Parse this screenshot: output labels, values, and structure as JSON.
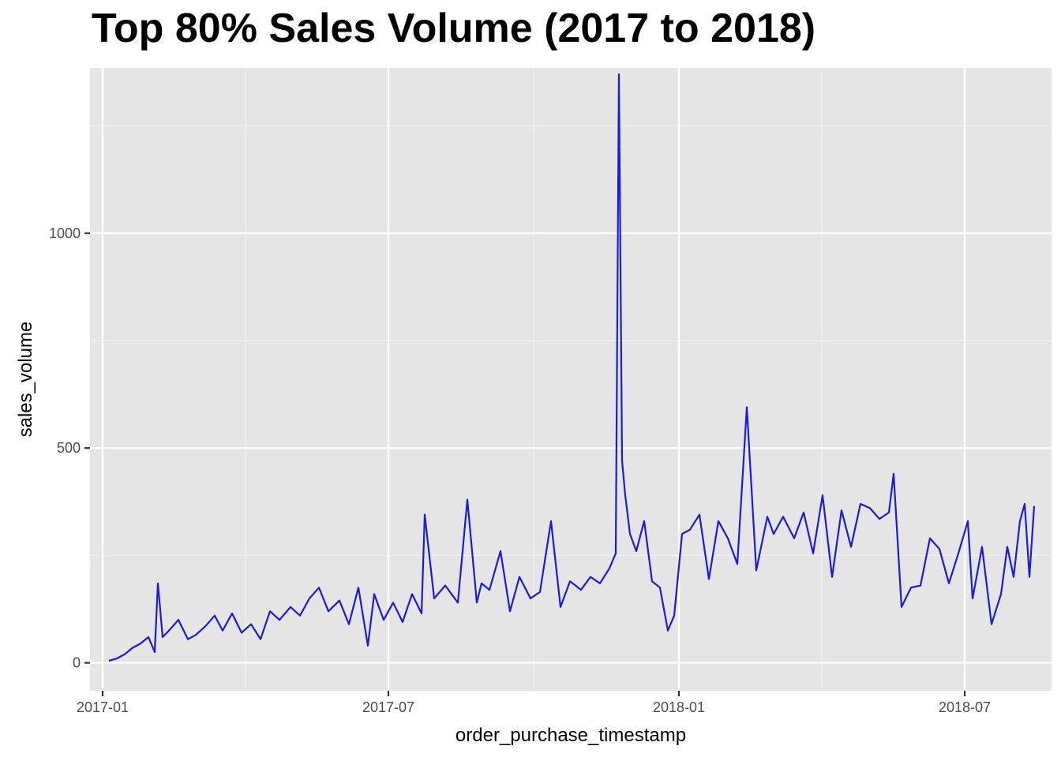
{
  "chart_data": {
    "type": "line",
    "title": "Top 80% Sales Volume (2017 to 2018)",
    "xlabel": "order_purchase_timestamp",
    "ylabel": "sales_volume",
    "xlim": [
      "2016-12-24",
      "2018-08-25"
    ],
    "ylim": [
      -65,
      1385
    ],
    "x_ticks": [
      "2017-01-01",
      "2017-07-01",
      "2018-01-01",
      "2018-07-01"
    ],
    "x_tick_labels": [
      "2017-01",
      "2017-07",
      "2018-01",
      "2018-07"
    ],
    "y_ticks": [
      0,
      500,
      1000
    ],
    "y_tick_labels": [
      "0",
      "500",
      "1000"
    ],
    "grid": true,
    "background": "#e5e5e5",
    "line_color": "#1c1cd6",
    "series": [
      {
        "x": [
          "2017-01-05",
          "2017-01-10",
          "2017-01-15",
          "2017-01-20",
          "2017-01-25",
          "2017-01-30",
          "2017-02-03",
          "2017-02-05",
          "2017-02-08",
          "2017-02-12",
          "2017-02-18",
          "2017-02-24",
          "2017-03-01",
          "2017-03-07",
          "2017-03-13",
          "2017-03-18",
          "2017-03-24",
          "2017-03-30",
          "2017-04-05",
          "2017-04-11",
          "2017-04-17",
          "2017-04-23",
          "2017-04-30",
          "2017-05-06",
          "2017-05-12",
          "2017-05-18",
          "2017-05-24",
          "2017-05-31",
          "2017-06-06",
          "2017-06-12",
          "2017-06-18",
          "2017-06-22",
          "2017-06-28",
          "2017-07-04",
          "2017-07-10",
          "2017-07-16",
          "2017-07-22",
          "2017-07-24",
          "2017-07-30",
          "2017-08-06",
          "2017-08-14",
          "2017-08-20",
          "2017-08-26",
          "2017-08-29",
          "2017-09-03",
          "2017-09-10",
          "2017-09-16",
          "2017-09-22",
          "2017-09-29",
          "2017-10-05",
          "2017-10-12",
          "2017-10-18",
          "2017-10-24",
          "2017-10-31",
          "2017-11-06",
          "2017-11-12",
          "2017-11-18",
          "2017-11-22",
          "2017-11-24",
          "2017-11-26",
          "2017-11-28",
          "2017-12-01",
          "2017-12-05",
          "2017-12-10",
          "2017-12-15",
          "2017-12-20",
          "2017-12-25",
          "2017-12-29",
          "2018-01-03",
          "2018-01-08",
          "2018-01-14",
          "2018-01-20",
          "2018-01-26",
          "2018-02-01",
          "2018-02-07",
          "2018-02-13",
          "2018-02-19",
          "2018-02-26",
          "2018-03-02",
          "2018-03-08",
          "2018-03-15",
          "2018-03-21",
          "2018-03-27",
          "2018-04-02",
          "2018-04-08",
          "2018-04-14",
          "2018-04-20",
          "2018-04-26",
          "2018-05-02",
          "2018-05-08",
          "2018-05-14",
          "2018-05-17",
          "2018-05-22",
          "2018-05-28",
          "2018-06-03",
          "2018-06-09",
          "2018-06-15",
          "2018-06-21",
          "2018-06-27",
          "2018-07-03",
          "2018-07-06",
          "2018-07-12",
          "2018-07-18",
          "2018-07-24",
          "2018-07-28",
          "2018-08-01",
          "2018-08-05",
          "2018-08-08",
          "2018-08-11",
          "2018-08-14"
        ],
        "y": [
          5,
          10,
          20,
          35,
          45,
          60,
          25,
          185,
          60,
          75,
          100,
          55,
          65,
          85,
          110,
          75,
          115,
          70,
          90,
          55,
          120,
          100,
          130,
          110,
          150,
          175,
          120,
          145,
          90,
          175,
          40,
          160,
          100,
          140,
          95,
          160,
          115,
          345,
          150,
          180,
          140,
          380,
          140,
          185,
          170,
          260,
          120,
          200,
          150,
          165,
          330,
          130,
          190,
          170,
          200,
          185,
          220,
          255,
          1370,
          470,
          390,
          300,
          260,
          330,
          190,
          175,
          75,
          110,
          300,
          310,
          345,
          195,
          330,
          290,
          230,
          595,
          215,
          340,
          300,
          340,
          290,
          350,
          255,
          390,
          200,
          355,
          270,
          370,
          360,
          335,
          350,
          440,
          130,
          175,
          180,
          290,
          265,
          185,
          255,
          330,
          150,
          270,
          90,
          160,
          270,
          200,
          330,
          370,
          200,
          365
        ]
      }
    ]
  }
}
